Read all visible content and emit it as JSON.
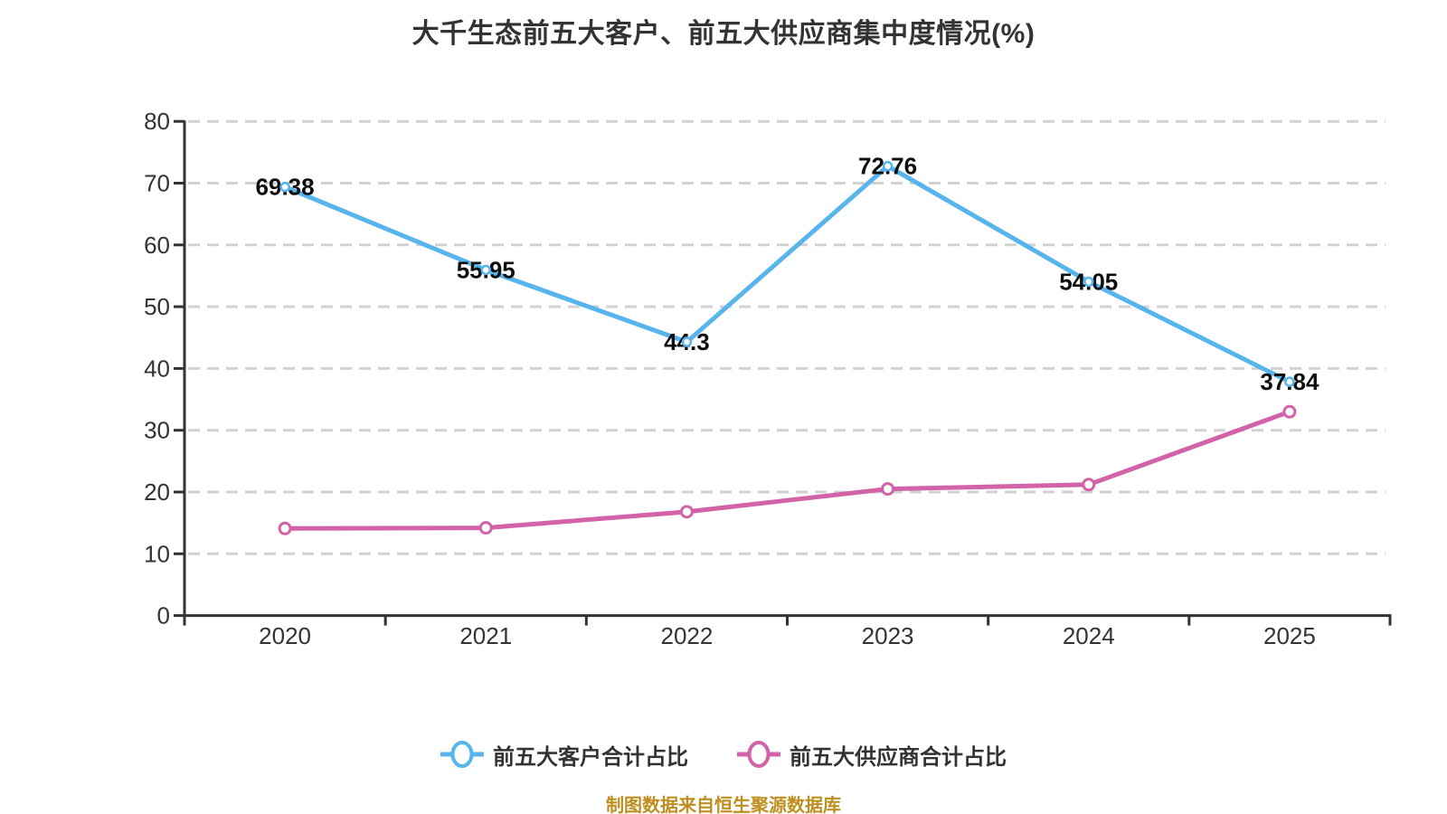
{
  "title": "大千生态前五大客户、前五大供应商集中度情况(%)",
  "source_note": "制图数据来自恒生聚源数据库",
  "colors": {
    "background": "#ffffff",
    "title_text": "#333333",
    "axis_text": "#333333",
    "axis_line": "#333333",
    "gridline": "#d2d2d2",
    "point_label": "#0e0e0e",
    "customer_series": "#57b4ec",
    "supplier_series": "#d263a8",
    "source_note_text": "#bd8f1e"
  },
  "legend": {
    "items": [
      {
        "key": "customers",
        "label": "前五大客户合计占比"
      },
      {
        "key": "suppliers",
        "label": "前五大供应商合计占比"
      }
    ]
  },
  "chart_data": {
    "type": "line",
    "title": "大千生态前五大客户、前五大供应商集中度情况(%)",
    "xlabel": "",
    "ylabel": "",
    "categories": [
      "2020",
      "2021",
      "2022",
      "2023",
      "2024",
      "2025"
    ],
    "series": [
      {
        "key": "customers",
        "name": "前五大客户合计占比",
        "color": "#57b4ec",
        "values": [
          69.38,
          55.95,
          44.3,
          72.76,
          54.05,
          37.84
        ],
        "show_point_labels": true
      },
      {
        "key": "suppliers",
        "name": "前五大供应商合计占比",
        "color": "#d263a8",
        "values": [
          14.1,
          14.2,
          16.8,
          20.5,
          21.2,
          33.0
        ],
        "show_point_labels": false
      }
    ],
    "ylim": [
      0,
      80
    ],
    "yticks": [
      0,
      10,
      20,
      30,
      40,
      50,
      60,
      70,
      80
    ],
    "grid": "horizontal-dashed",
    "legend_position": "bottom-center"
  }
}
